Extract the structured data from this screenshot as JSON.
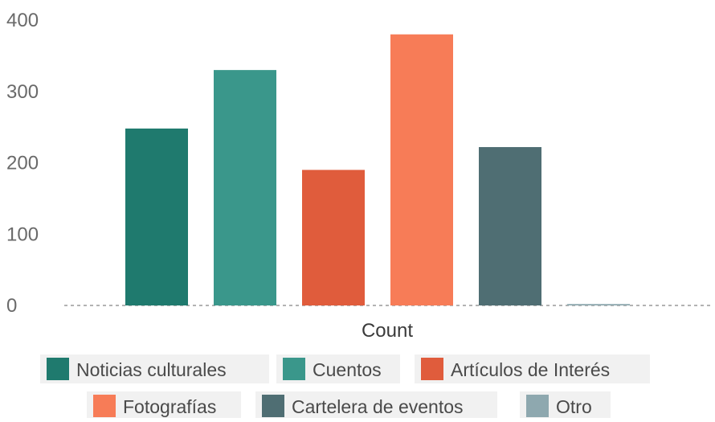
{
  "chart_data": {
    "type": "bar",
    "xlabel": "Count",
    "ylim": [
      0,
      400
    ],
    "yticks": [
      0,
      100,
      200,
      300,
      400
    ],
    "grid": false,
    "legend_position": "bottom",
    "series": [
      {
        "name": "Noticias culturales",
        "value": 248,
        "color": "#1f7a6e"
      },
      {
        "name": "Cuentos",
        "value": 330,
        "color": "#3a978b"
      },
      {
        "name": "Artículos de Interés",
        "value": 190,
        "color": "#e05c3c"
      },
      {
        "name": "Fotografías",
        "value": 380,
        "color": "#f77c57"
      },
      {
        "name": "Cartelera de eventos",
        "value": 222,
        "color": "#4f6e73"
      },
      {
        "name": "Otro",
        "value": 2,
        "color": "#8ea8af"
      }
    ]
  }
}
